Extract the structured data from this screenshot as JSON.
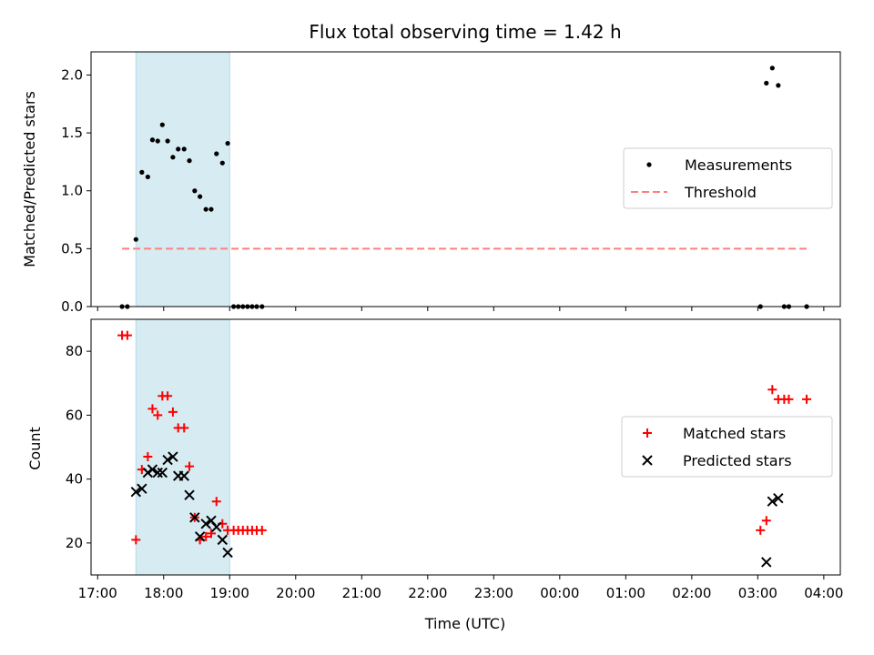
{
  "chart_data": {
    "type": "scatter",
    "title": "Flux total observing time = 1.42 h",
    "xlabel": "Time (UTC)",
    "x_unit": "hours since 17:00 UTC",
    "xlim": [
      -0.1,
      11.25
    ],
    "x_ticks": [
      {
        "value": 0,
        "label": "17:00"
      },
      {
        "value": 1,
        "label": "18:00"
      },
      {
        "value": 2,
        "label": "19:00"
      },
      {
        "value": 3,
        "label": "20:00"
      },
      {
        "value": 4,
        "label": "21:00"
      },
      {
        "value": 5,
        "label": "22:00"
      },
      {
        "value": 6,
        "label": "23:00"
      },
      {
        "value": 7,
        "label": "00:00"
      },
      {
        "value": 8,
        "label": "01:00"
      },
      {
        "value": 9,
        "label": "02:00"
      },
      {
        "value": 10,
        "label": "03:00"
      },
      {
        "value": 11,
        "label": "04:00"
      }
    ],
    "shaded_interval": {
      "start": 0.58,
      "end": 2.0,
      "color": "#add8e6"
    },
    "top": {
      "ylabel": "Matched/Predicted stars",
      "ylim": [
        0,
        2.2
      ],
      "y_ticks": [
        "0.0",
        "0.5",
        "1.0",
        "1.5",
        "2.0"
      ],
      "series": [
        {
          "name": "Measurements",
          "marker": "dot",
          "color": "#000000",
          "points": [
            [
              0.37,
              0.0
            ],
            [
              0.45,
              0.0
            ],
            [
              0.58,
              0.58
            ],
            [
              0.67,
              1.16
            ],
            [
              0.76,
              1.12
            ],
            [
              0.83,
              1.44
            ],
            [
              0.91,
              1.43
            ],
            [
              0.98,
              1.57
            ],
            [
              1.06,
              1.43
            ],
            [
              1.14,
              1.29
            ],
            [
              1.22,
              1.36
            ],
            [
              1.31,
              1.36
            ],
            [
              1.39,
              1.26
            ],
            [
              1.47,
              1.0
            ],
            [
              1.55,
              0.95
            ],
            [
              1.64,
              0.84
            ],
            [
              1.72,
              0.84
            ],
            [
              1.8,
              1.32
            ],
            [
              1.89,
              1.24
            ],
            [
              1.97,
              1.41
            ],
            [
              2.06,
              0.0
            ],
            [
              2.13,
              0.0
            ],
            [
              2.2,
              0.0
            ],
            [
              2.27,
              0.0
            ],
            [
              2.34,
              0.0
            ],
            [
              2.41,
              0.0
            ],
            [
              2.49,
              0.0
            ],
            [
              10.04,
              0.0
            ],
            [
              10.13,
              1.93
            ],
            [
              10.22,
              2.06
            ],
            [
              10.31,
              1.91
            ],
            [
              10.4,
              0.0
            ],
            [
              10.47,
              0.0
            ],
            [
              10.74,
              0.0
            ]
          ]
        }
      ],
      "threshold": {
        "name": "Threshold",
        "value": 0.5,
        "x_start": 0.37,
        "x_end": 10.74,
        "color": "#ff7f7f"
      },
      "legend": {
        "position": "center-right",
        "entries": [
          "Measurements",
          "Threshold"
        ]
      }
    },
    "bottom": {
      "ylabel": "Count",
      "ylim": [
        10,
        90
      ],
      "y_ticks": [
        "20",
        "40",
        "60",
        "80"
      ],
      "series": [
        {
          "name": "Matched stars",
          "marker": "plus",
          "color": "#ff0000",
          "points": [
            [
              0.37,
              85
            ],
            [
              0.45,
              85
            ],
            [
              0.58,
              21
            ],
            [
              0.67,
              43
            ],
            [
              0.76,
              47
            ],
            [
              0.83,
              62
            ],
            [
              0.91,
              60
            ],
            [
              0.98,
              66
            ],
            [
              1.06,
              66
            ],
            [
              1.14,
              61
            ],
            [
              1.22,
              56
            ],
            [
              1.31,
              56
            ],
            [
              1.39,
              44
            ],
            [
              1.47,
              28
            ],
            [
              1.55,
              21
            ],
            [
              1.64,
              22
            ],
            [
              1.72,
              23
            ],
            [
              1.8,
              33
            ],
            [
              1.89,
              26
            ],
            [
              1.97,
              24
            ],
            [
              2.06,
              24
            ],
            [
              2.13,
              24
            ],
            [
              2.2,
              24
            ],
            [
              2.27,
              24
            ],
            [
              2.34,
              24
            ],
            [
              2.41,
              24
            ],
            [
              2.49,
              24
            ],
            [
              10.04,
              24
            ],
            [
              10.13,
              27
            ],
            [
              10.22,
              68
            ],
            [
              10.31,
              65
            ],
            [
              10.4,
              65
            ],
            [
              10.47,
              65
            ],
            [
              10.74,
              65
            ]
          ]
        },
        {
          "name": "Predicted stars",
          "marker": "x",
          "color": "#000000",
          "points": [
            [
              0.58,
              36
            ],
            [
              0.67,
              37
            ],
            [
              0.76,
              42
            ],
            [
              0.83,
              43
            ],
            [
              0.91,
              42
            ],
            [
              0.98,
              42
            ],
            [
              1.06,
              46
            ],
            [
              1.14,
              47
            ],
            [
              1.22,
              41
            ],
            [
              1.31,
              41
            ],
            [
              1.39,
              35
            ],
            [
              1.47,
              28
            ],
            [
              1.55,
              22
            ],
            [
              1.64,
              26
            ],
            [
              1.72,
              27
            ],
            [
              1.8,
              25
            ],
            [
              1.89,
              21
            ],
            [
              1.97,
              17
            ],
            [
              10.13,
              14
            ],
            [
              10.22,
              33
            ],
            [
              10.31,
              34
            ]
          ]
        }
      ],
      "legend": {
        "position": "center-right",
        "entries": [
          "Matched stars",
          "Predicted stars"
        ]
      }
    }
  }
}
